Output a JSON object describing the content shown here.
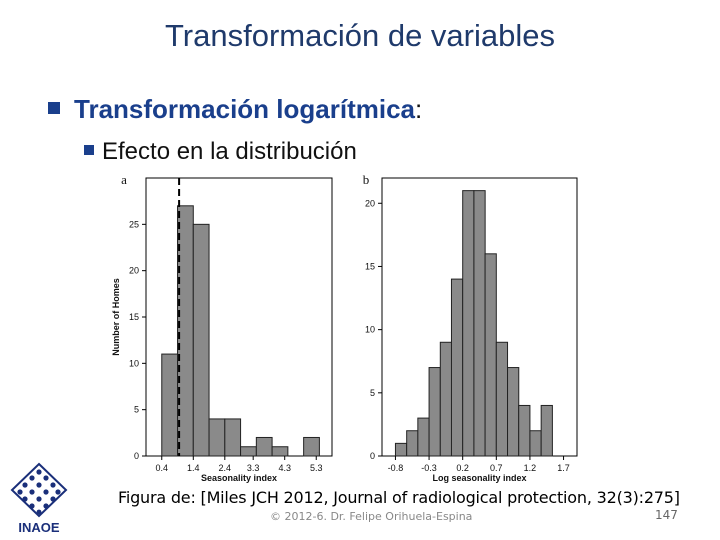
{
  "slide": {
    "title": "Transformación de variables",
    "bullet1": "Transformación logarítmica",
    "bullet1_colon": ":",
    "bullet2": "Efecto en la distribución",
    "caption": "Figura de: [Miles JCH 2012, Journal of radiological protection, 32(3):275]",
    "footer": "© 2012-6. Dr. Felipe Orihuela-Espina",
    "page_number": "147",
    "logo_text": "INAOE"
  },
  "chart_data": [
    {
      "type": "bar",
      "panel_label": "a",
      "xlabel": "Seasonality index",
      "ylabel": "Number of Homes",
      "x_ticks": [
        "0.4",
        "1.4",
        "2.4",
        "3.3",
        "4.3",
        "5.3"
      ],
      "x_tick_values": [
        0.4,
        1.4,
        2.4,
        3.3,
        4.3,
        5.3
      ],
      "y_ticks": [
        0,
        5,
        10,
        15,
        20,
        25
      ],
      "ylim": [
        0,
        30
      ],
      "xlim": [
        -0.1,
        5.8
      ],
      "bin_width": 0.5,
      "bin_starts": [
        0.4,
        0.9,
        1.4,
        1.9,
        2.4,
        2.9,
        3.4,
        3.9,
        4.4,
        4.9
      ],
      "values": [
        11,
        27,
        25,
        4,
        4,
        1,
        2,
        1,
        0,
        2
      ],
      "reference_line_x": 0.95,
      "reference_line_style": "dashed"
    },
    {
      "type": "bar",
      "panel_label": "b",
      "xlabel": "Log seasonality index",
      "ylabel": "",
      "x_ticks": [
        "-0.8",
        "-0.3",
        "0.2",
        "0.7",
        "1.2",
        "1.7"
      ],
      "x_tick_values": [
        -0.8,
        -0.3,
        0.2,
        0.7,
        1.2,
        1.7
      ],
      "y_ticks": [
        0,
        5,
        10,
        15,
        20
      ],
      "ylim": [
        0,
        22
      ],
      "xlim": [
        -1.0,
        1.9
      ],
      "bin_width": 0.167,
      "bin_starts": [
        -0.8,
        -0.633,
        -0.467,
        -0.3,
        -0.133,
        0.033,
        0.2,
        0.367,
        0.533,
        0.7,
        0.867,
        1.033,
        1.2,
        1.367,
        1.533
      ],
      "values": [
        1,
        2,
        3,
        7,
        9,
        14,
        21,
        21,
        16,
        9,
        7,
        4,
        2,
        4,
        0
      ]
    }
  ]
}
